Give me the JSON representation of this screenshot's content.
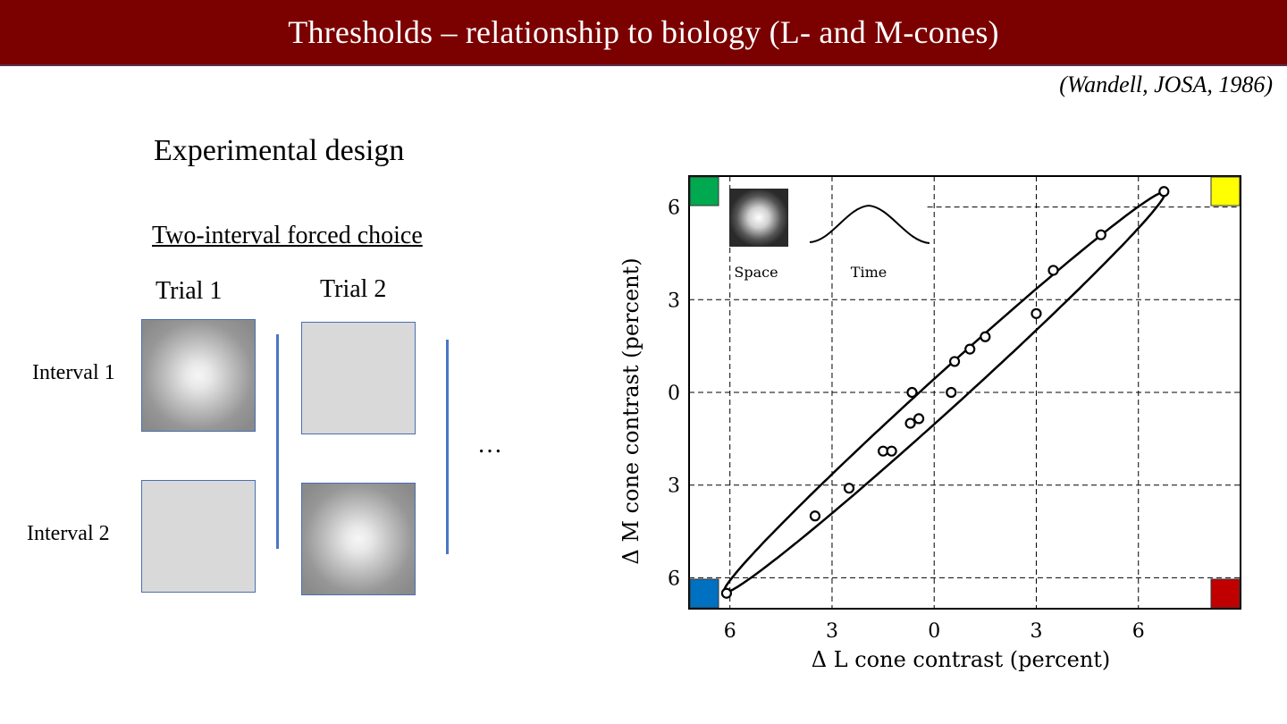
{
  "header": {
    "title": "Thresholds – relationship to biology (L- and M-cones)"
  },
  "citation": "(Wandell, JOSA, 1986)",
  "left": {
    "heading": "Experimental design",
    "subheading": "Two-interval forced choice",
    "trials": [
      "Trial 1",
      "Trial 2"
    ],
    "intervals": [
      "Interval 1",
      "Interval 2"
    ],
    "ellipsis": "…"
  },
  "chart_data": {
    "type": "scatter",
    "xlabel": "Δ L cone contrast (percent)",
    "ylabel": "Δ M cone contrast (percent)",
    "xlim": [
      -7.2,
      9.0
    ],
    "ylim": [
      -7.0,
      7.0
    ],
    "xticks": [
      -6,
      -3,
      0,
      3,
      6
    ],
    "xtick_labels": [
      "6",
      "3",
      "0",
      "3",
      "6"
    ],
    "yticks": [
      -6,
      -3,
      0,
      3,
      6
    ],
    "ytick_labels": [
      "6",
      "3",
      "0",
      "3",
      "6"
    ],
    "grid": true,
    "points": [
      {
        "x": -6.1,
        "y": -6.5
      },
      {
        "x": -3.5,
        "y": -4.0
      },
      {
        "x": -2.5,
        "y": -3.1
      },
      {
        "x": -1.5,
        "y": -1.9
      },
      {
        "x": -1.25,
        "y": -1.9
      },
      {
        "x": -0.7,
        "y": -1.0
      },
      {
        "x": -0.45,
        "y": -0.85
      },
      {
        "x": -0.65,
        "y": 0.0
      },
      {
        "x": 0.5,
        "y": 0.0
      },
      {
        "x": 0.6,
        "y": 1.0
      },
      {
        "x": 1.05,
        "y": 1.4
      },
      {
        "x": 1.5,
        "y": 1.8
      },
      {
        "x": 3.0,
        "y": 2.55
      },
      {
        "x": 3.5,
        "y": 3.95
      },
      {
        "x": 4.9,
        "y": 5.1
      },
      {
        "x": 6.75,
        "y": 6.5
      }
    ],
    "ellipse": {
      "center": [
        0.3,
        0.0
      ],
      "major_half": 9.15,
      "minor_half": 0.52,
      "angle_deg": 45
    },
    "inset": {
      "space_label": "Space",
      "time_label": "Time"
    },
    "corner_colors": {
      "top_left": "#00a84f",
      "top_right": "#ffff00",
      "bottom_left": "#0070c0",
      "bottom_right": "#c00000"
    }
  }
}
